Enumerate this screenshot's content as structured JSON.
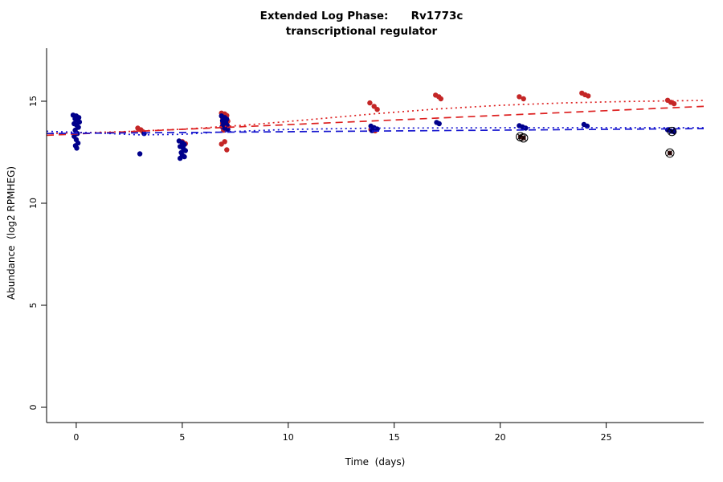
{
  "chart_data": {
    "type": "scatter",
    "title": "Extended Log Phase:      Rv1773c",
    "subtitle": "transcriptional regulator",
    "xlabel": "Time  (days)",
    "ylabel": "Abundance  (log2 RPMHEG)",
    "xlim": [
      -1.4,
      29.6
    ],
    "ylim": [
      -0.75,
      17.6
    ],
    "xticks": [
      0,
      5,
      10,
      15,
      20,
      25
    ],
    "yticks": [
      0,
      5,
      10,
      15
    ],
    "grid": false,
    "legend": "none",
    "colors": {
      "red_points": "#c42626",
      "blue_points": "#00008b",
      "red_trend": "#dd2020",
      "blue_trend": "#1616cf",
      "axis": "#000000"
    },
    "series": [
      {
        "name": "red",
        "color": "#c42626",
        "marker": "circle",
        "points": [
          [
            2.9,
            13.68
          ],
          [
            3.05,
            13.6
          ],
          [
            3.15,
            13.5
          ],
          [
            5.0,
            13.02
          ],
          [
            5.15,
            12.92
          ],
          [
            6.85,
            14.42
          ],
          [
            7.0,
            14.38
          ],
          [
            7.1,
            14.3
          ],
          [
            6.9,
            14.2
          ],
          [
            7.05,
            14.12
          ],
          [
            7.15,
            14.02
          ],
          [
            6.9,
            13.92
          ],
          [
            7.05,
            13.82
          ],
          [
            6.95,
            13.58
          ],
          [
            7.0,
            13.02
          ],
          [
            6.85,
            12.9
          ],
          [
            7.1,
            12.62
          ],
          [
            13.85,
            14.92
          ],
          [
            14.05,
            14.75
          ],
          [
            14.2,
            14.6
          ],
          [
            13.9,
            13.62
          ],
          [
            14.1,
            13.55
          ],
          [
            16.95,
            15.3
          ],
          [
            17.1,
            15.22
          ],
          [
            17.2,
            15.12
          ],
          [
            20.9,
            15.22
          ],
          [
            21.1,
            15.12
          ],
          [
            23.85,
            15.4
          ],
          [
            24.0,
            15.32
          ],
          [
            24.15,
            15.26
          ],
          [
            27.9,
            15.05
          ],
          [
            28.05,
            14.95
          ],
          [
            28.2,
            14.88
          ]
        ]
      },
      {
        "name": "blue",
        "color": "#00008b",
        "marker": "circle",
        "points": [
          [
            -0.15,
            14.32
          ],
          [
            0.0,
            14.28
          ],
          [
            0.12,
            14.2
          ],
          [
            -0.06,
            14.14
          ],
          [
            0.06,
            14.06
          ],
          [
            0.15,
            13.98
          ],
          [
            -0.1,
            13.9
          ],
          [
            0.02,
            13.82
          ],
          [
            0.1,
            13.72
          ],
          [
            -0.05,
            13.58
          ],
          [
            0.05,
            13.42
          ],
          [
            -0.1,
            13.28
          ],
          [
            0.0,
            13.12
          ],
          [
            0.08,
            12.95
          ],
          [
            -0.04,
            12.82
          ],
          [
            0.02,
            12.7
          ],
          [
            3.0,
            12.42
          ],
          [
            3.2,
            13.42
          ],
          [
            4.85,
            13.05
          ],
          [
            5.0,
            12.97
          ],
          [
            5.1,
            12.88
          ],
          [
            4.9,
            12.78
          ],
          [
            5.05,
            12.68
          ],
          [
            5.15,
            12.58
          ],
          [
            4.95,
            12.48
          ],
          [
            5.0,
            12.36
          ],
          [
            5.1,
            12.28
          ],
          [
            4.9,
            12.2
          ],
          [
            6.85,
            14.28
          ],
          [
            7.0,
            14.2
          ],
          [
            7.1,
            14.12
          ],
          [
            6.9,
            14.05
          ],
          [
            7.05,
            13.97
          ],
          [
            6.95,
            13.9
          ],
          [
            7.12,
            13.82
          ],
          [
            6.88,
            13.75
          ],
          [
            7.0,
            13.68
          ],
          [
            7.15,
            13.62
          ],
          [
            13.9,
            13.78
          ],
          [
            14.05,
            13.7
          ],
          [
            14.2,
            13.64
          ],
          [
            13.95,
            13.56
          ],
          [
            17.0,
            13.96
          ],
          [
            17.12,
            13.9
          ],
          [
            20.9,
            13.8
          ],
          [
            21.05,
            13.74
          ],
          [
            21.2,
            13.68
          ],
          [
            23.95,
            13.86
          ],
          [
            24.1,
            13.78
          ],
          [
            27.9,
            13.6
          ],
          [
            28.05,
            13.54
          ],
          [
            28.2,
            13.5
          ]
        ]
      }
    ],
    "outliers": {
      "name": "excluded-points",
      "marker": "circled-x",
      "points": [
        {
          "x": 20.95,
          "y": 13.26,
          "color": "#4a1010"
        },
        {
          "x": 21.1,
          "y": 13.2,
          "color": "#4a1010"
        },
        {
          "x": 28.0,
          "y": 12.46,
          "color": "#4a1010"
        },
        {
          "x": 28.1,
          "y": 13.52,
          "color": "#000080"
        }
      ]
    },
    "trends": [
      {
        "name": "red-dotted",
        "color": "#dd2020",
        "dash": "dotted",
        "points": [
          [
            -1.4,
            13.42
          ],
          [
            2,
            13.5
          ],
          [
            5,
            13.63
          ],
          [
            8,
            13.83
          ],
          [
            11,
            14.1
          ],
          [
            14,
            14.38
          ],
          [
            17,
            14.62
          ],
          [
            20,
            14.8
          ],
          [
            23,
            14.92
          ],
          [
            26,
            14.99
          ],
          [
            29.6,
            15.04
          ]
        ]
      },
      {
        "name": "red-dashed",
        "color": "#dd2020",
        "dash": "dashed",
        "points": [
          [
            -1.4,
            13.33
          ],
          [
            29.6,
            14.75
          ]
        ]
      },
      {
        "name": "blue-dotted",
        "color": "#1616cf",
        "dash": "dotted",
        "points": [
          [
            -1.4,
            13.53
          ],
          [
            1,
            13.44
          ],
          [
            3,
            13.35
          ],
          [
            5,
            13.38
          ],
          [
            7,
            13.5
          ],
          [
            10,
            13.62
          ],
          [
            14,
            13.68
          ],
          [
            20,
            13.7
          ],
          [
            29.6,
            13.7
          ]
        ]
      },
      {
        "name": "blue-dashed",
        "color": "#1616cf",
        "dash": "dashed",
        "points": [
          [
            -1.4,
            13.42
          ],
          [
            29.6,
            13.66
          ]
        ]
      }
    ]
  }
}
